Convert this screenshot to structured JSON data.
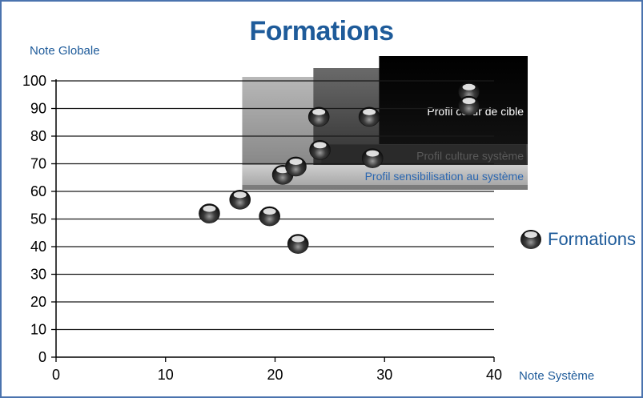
{
  "chart_data": {
    "type": "scatter",
    "title": "Formations",
    "xlabel": "Note Système",
    "ylabel": "Note Globale",
    "xlim": [
      0,
      40
    ],
    "ylim": [
      0,
      100
    ],
    "x_ticks": [
      "0",
      "10",
      "20",
      "30",
      "40"
    ],
    "y_ticks": [
      "0",
      "10",
      "20",
      "30",
      "40",
      "50",
      "60",
      "70",
      "80",
      "90",
      "100"
    ],
    "grid": "horizontal",
    "legend": "right",
    "series": [
      {
        "name": "Formations",
        "points": [
          {
            "x": 14,
            "y": 52
          },
          {
            "x": 16.8,
            "y": 57
          },
          {
            "x": 19.5,
            "y": 51
          },
          {
            "x": 20.7,
            "y": 66
          },
          {
            "x": 21.9,
            "y": 69
          },
          {
            "x": 22.1,
            "y": 41
          },
          {
            "x": 24,
            "y": 87
          },
          {
            "x": 24.1,
            "y": 75
          },
          {
            "x": 28.6,
            "y": 87
          },
          {
            "x": 28.9,
            "y": 72
          },
          {
            "x": 37.7,
            "y": 96
          },
          {
            "x": 37.7,
            "y": 91
          }
        ]
      }
    ],
    "zones": [
      {
        "label": "Profil sensibilisation au système",
        "x_from": 17,
        "y_from": 60,
        "color": "#8a8a8a",
        "text_color": "#2a66b0"
      },
      {
        "label": "Profil culture système",
        "x_from": 23.5,
        "y_from": 68,
        "color": "#3c3c3c",
        "text_color": "#5a5a5a"
      },
      {
        "label": "Profil cœur de cible",
        "x_from": 29.5,
        "y_from": 80,
        "color": "#050505",
        "text_color": "#ffffff"
      }
    ],
    "colors": {
      "title": "#1e5b9a",
      "axis_label": "#1e5b9a",
      "frame": "#4a73ae",
      "marker": "#2a2a2a"
    }
  }
}
